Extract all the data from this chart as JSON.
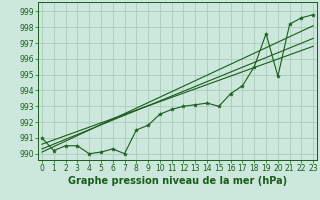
{
  "title": "Graphe pression niveau de la mer (hPa)",
  "background_color": "#cce8dc",
  "grid_color": "#aaccbb",
  "line_color": "#1a5c1a",
  "x_values": [
    0,
    1,
    2,
    3,
    4,
    5,
    6,
    7,
    8,
    9,
    10,
    11,
    12,
    13,
    14,
    15,
    16,
    17,
    18,
    19,
    20,
    21,
    22,
    23
  ],
  "y_values": [
    991.0,
    990.2,
    990.5,
    990.5,
    990.0,
    990.1,
    990.3,
    990.0,
    991.5,
    991.8,
    992.5,
    992.8,
    993.0,
    993.1,
    993.2,
    993.0,
    993.8,
    994.3,
    995.5,
    997.6,
    994.9,
    998.2,
    998.6,
    998.8
  ],
  "trend1_x": [
    0,
    23
  ],
  "trend1_y": [
    990.3,
    997.3
  ],
  "trend2_x": [
    0,
    23
  ],
  "trend2_y": [
    990.6,
    996.8
  ],
  "trend3_x": [
    0,
    23
  ],
  "trend3_y": [
    990.1,
    998.1
  ],
  "ylim": [
    989.6,
    999.6
  ],
  "xlim": [
    -0.3,
    23.3
  ],
  "yticks": [
    990,
    991,
    992,
    993,
    994,
    995,
    996,
    997,
    998,
    999
  ],
  "xticks": [
    0,
    1,
    2,
    3,
    4,
    5,
    6,
    7,
    8,
    9,
    10,
    11,
    12,
    13,
    14,
    15,
    16,
    17,
    18,
    19,
    20,
    21,
    22,
    23
  ],
  "tick_fontsize": 5.5,
  "label_fontsize": 7
}
